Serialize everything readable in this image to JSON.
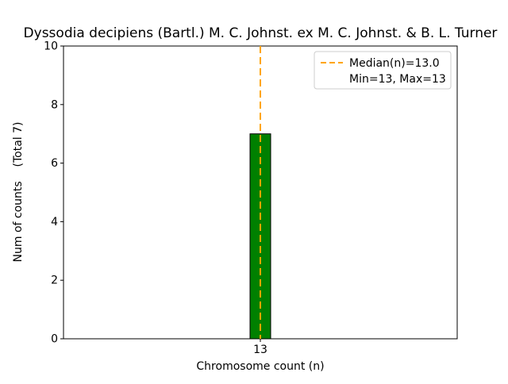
{
  "chart_data": {
    "type": "bar",
    "title": "Dyssodia decipiens (Bartl.) M. C. Johnst. ex M. C. Johnst. & B. L. Turner",
    "xlabel": "Chromosome count (n)",
    "ylabel": "Num of counts    (Total 7)",
    "categories": [
      "13"
    ],
    "values": [
      7
    ],
    "total_counts": 7,
    "ylim": [
      0,
      10
    ],
    "yticks": [
      0,
      2,
      4,
      6,
      8,
      10
    ],
    "median": 13.0,
    "min": 13,
    "max": 13,
    "legend": {
      "line1": "Median(n)=13.0",
      "line2": "Min=13, Max=13",
      "position": "upper right"
    },
    "grid": false,
    "colors": {
      "bar_fill": "#008000",
      "bar_edge": "#000000",
      "median_line": "#ffa500",
      "legend_border": "#cccccc",
      "axes_edge": "#000000"
    }
  }
}
